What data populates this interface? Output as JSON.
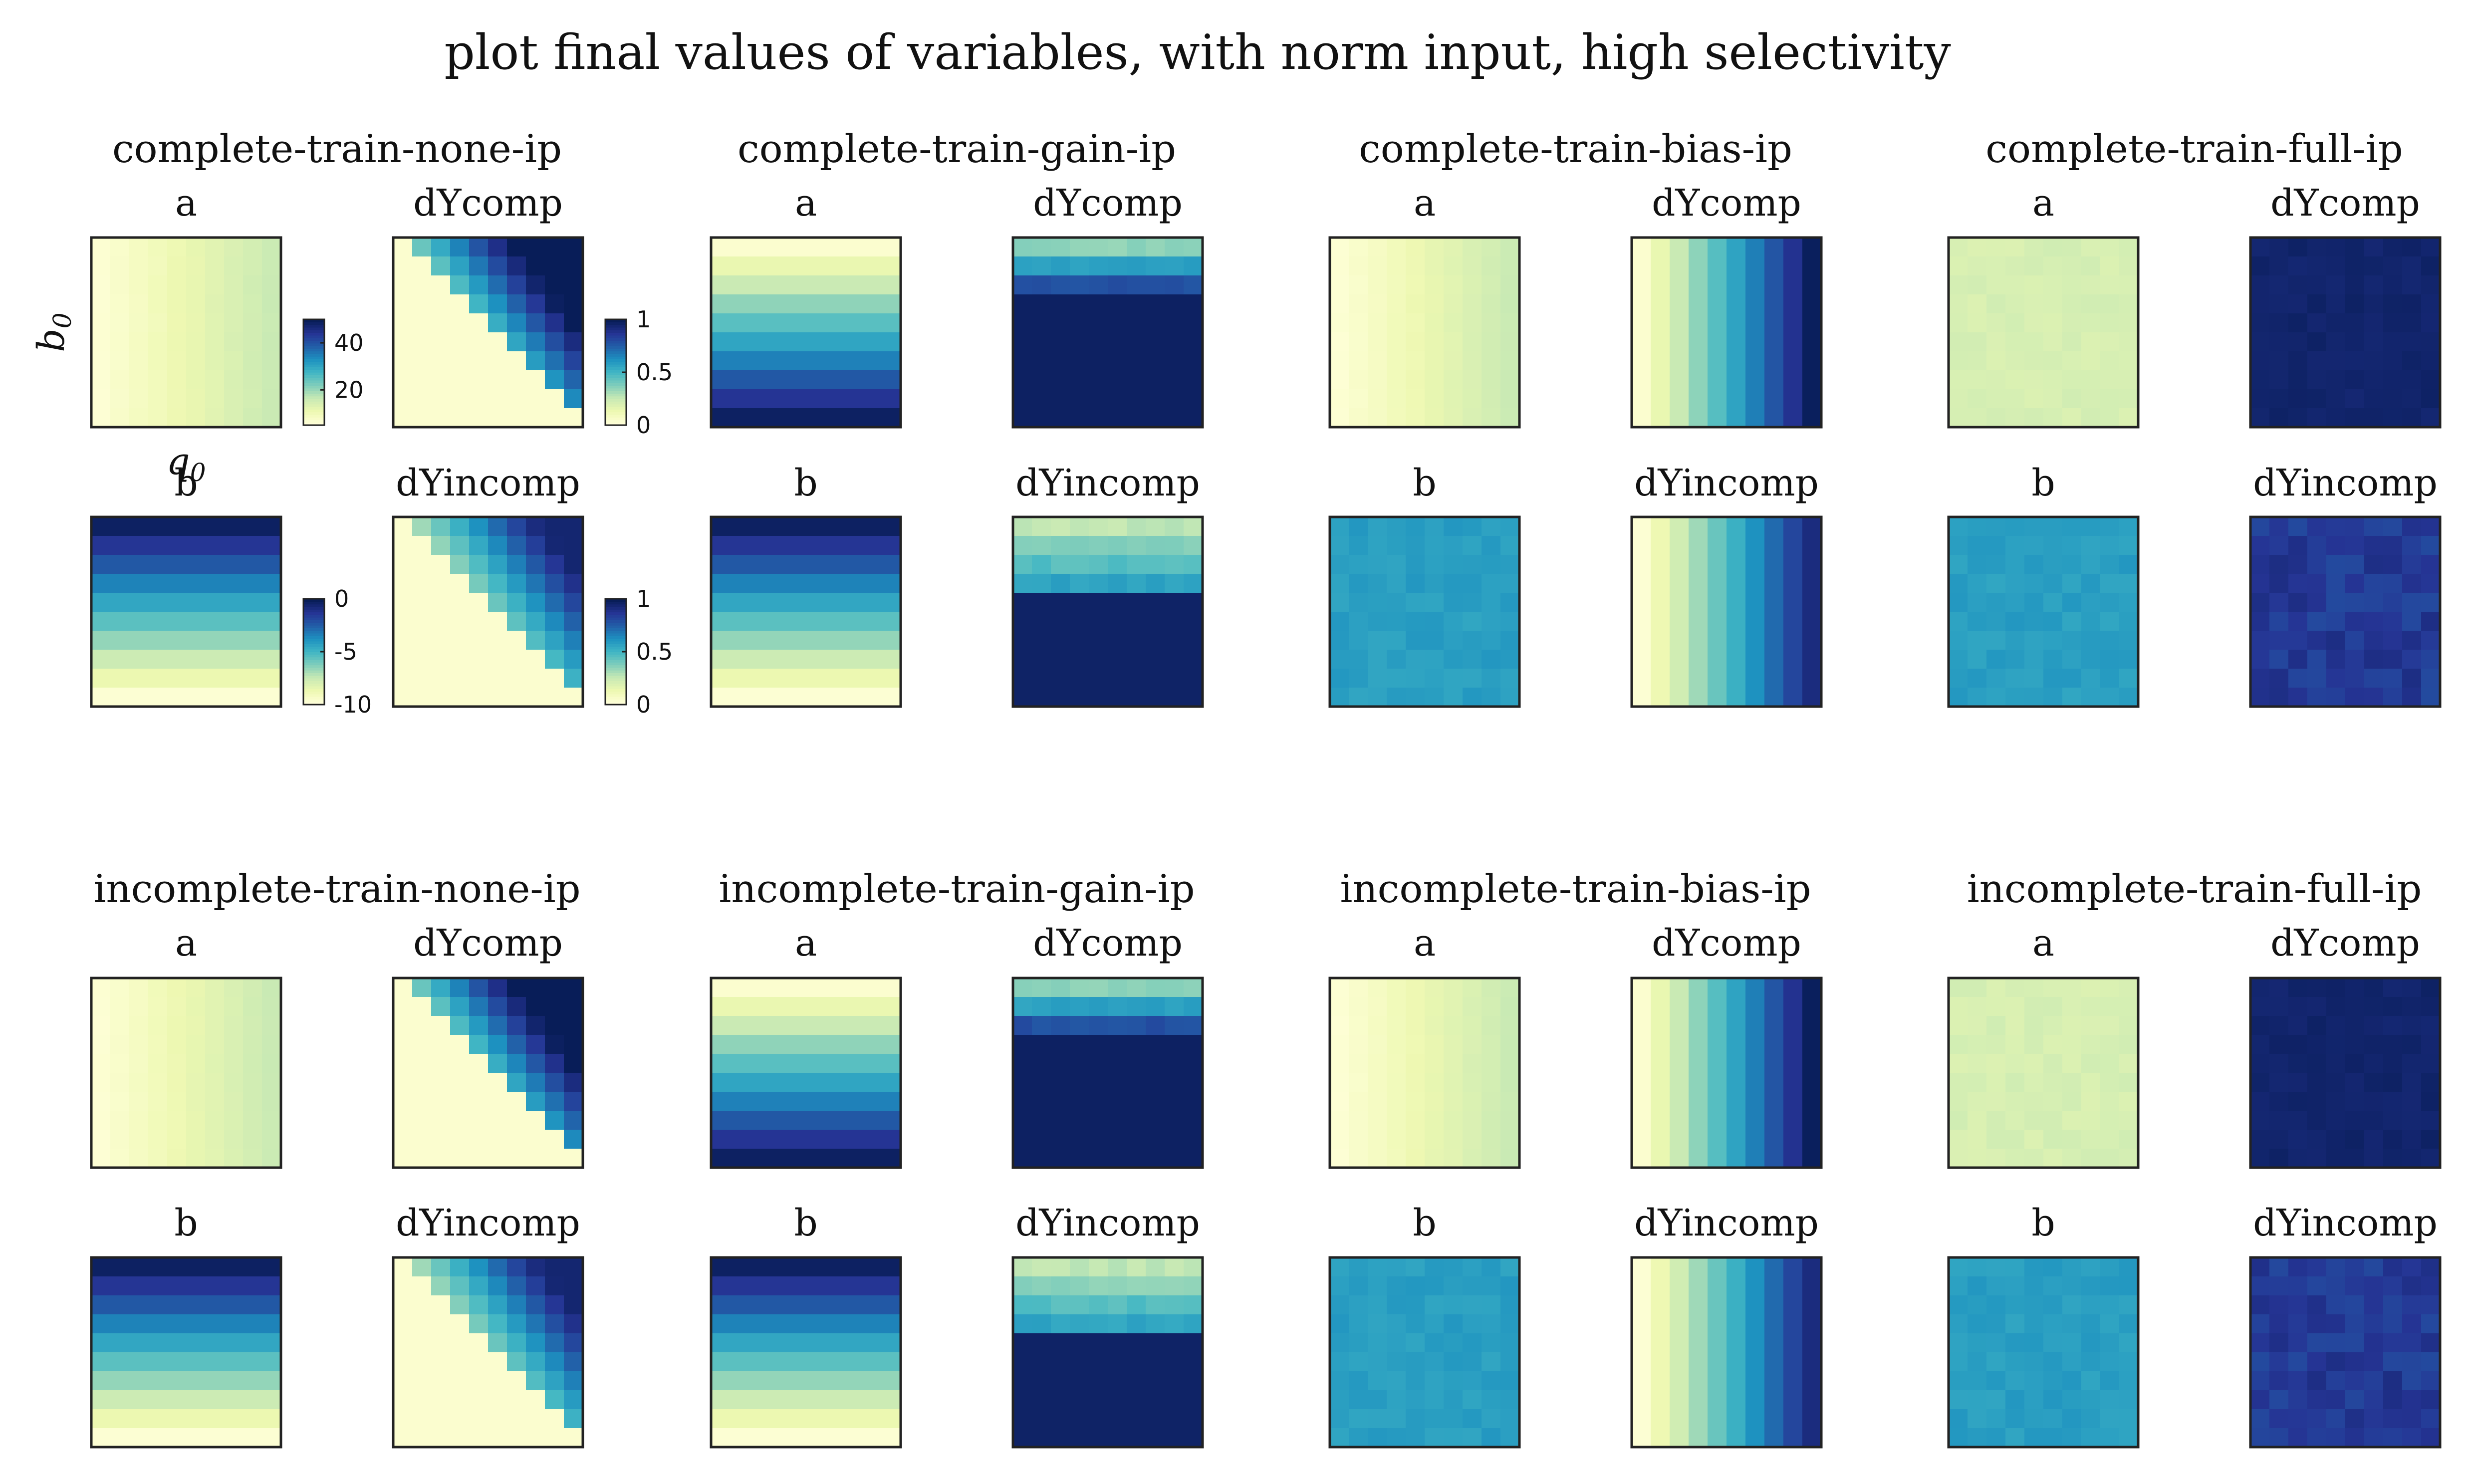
{
  "title": "plot final values of variables, with norm input, high selectivity",
  "chart_data": {
    "type": "heatmap",
    "axis_labels": {
      "y": "b0",
      "x": "q0"
    },
    "colormap": [
      "#ffffd9",
      "#edf8b1",
      "#c7e9b4",
      "#7fcdbb",
      "#41b6c4",
      "#1d91c0",
      "#225ea8",
      "#253494",
      "#081d58"
    ],
    "colorbars": [
      {
        "id": "a",
        "ticks": [
          "40",
          "20"
        ],
        "tick_values": [
          40,
          20
        ],
        "range": [
          5,
          50
        ]
      },
      {
        "id": "dY1",
        "ticks": [
          "1",
          "0.5",
          "0"
        ],
        "tick_values": [
          1,
          0.5,
          0
        ],
        "range": [
          0,
          1
        ]
      },
      {
        "id": "b",
        "ticks": [
          "0",
          "-5",
          "-10"
        ],
        "tick_values": [
          0,
          -5,
          -10
        ],
        "range": [
          -10,
          0
        ]
      },
      {
        "id": "dY2",
        "ticks": [
          "1",
          "0.5",
          "0"
        ],
        "tick_values": [
          1,
          0.5,
          0
        ],
        "range": [
          0,
          1
        ]
      }
    ],
    "panel_labels": {
      "a": "a",
      "b": "b",
      "dYcomp": "dYcomp",
      "dYincomp": "dYincomp"
    },
    "groups": [
      {
        "title": "complete-train-none-ip",
        "patterns": {
          "a": "h-light",
          "dYcomp": "tri-upper",
          "b": "v-grad-rev",
          "dYincomp": "tri-upper-soft"
        }
      },
      {
        "title": "complete-train-gain-ip",
        "patterns": {
          "a": "v-grad",
          "dYcomp": "top-band",
          "b": "v-grad-rev",
          "dYincomp": "top-band-soft"
        }
      },
      {
        "title": "complete-train-bias-ip",
        "patterns": {
          "a": "h-light",
          "dYcomp": "h-grad",
          "b": "flat-mid",
          "dYincomp": "h-grad-soft"
        }
      },
      {
        "title": "complete-train-full-ip",
        "patterns": {
          "a": "flat-light",
          "dYcomp": "flat-dark",
          "b": "flat-mid",
          "dYincomp": "flat-dark-noisy"
        }
      },
      {
        "title": "incomplete-train-none-ip",
        "patterns": {
          "a": "h-light",
          "dYcomp": "tri-upper",
          "b": "v-grad-rev",
          "dYincomp": "tri-upper-soft"
        }
      },
      {
        "title": "incomplete-train-gain-ip",
        "patterns": {
          "a": "v-grad",
          "dYcomp": "top-band",
          "b": "v-grad-rev",
          "dYincomp": "top-band-soft"
        }
      },
      {
        "title": "incomplete-train-bias-ip",
        "patterns": {
          "a": "h-light",
          "dYcomp": "h-grad",
          "b": "flat-mid",
          "dYincomp": "h-grad-soft"
        }
      },
      {
        "title": "incomplete-train-full-ip",
        "patterns": {
          "a": "flat-light",
          "dYcomp": "flat-dark",
          "b": "flat-mid",
          "dYincomp": "flat-dark-noisy"
        }
      }
    ],
    "grid_size": 10
  }
}
